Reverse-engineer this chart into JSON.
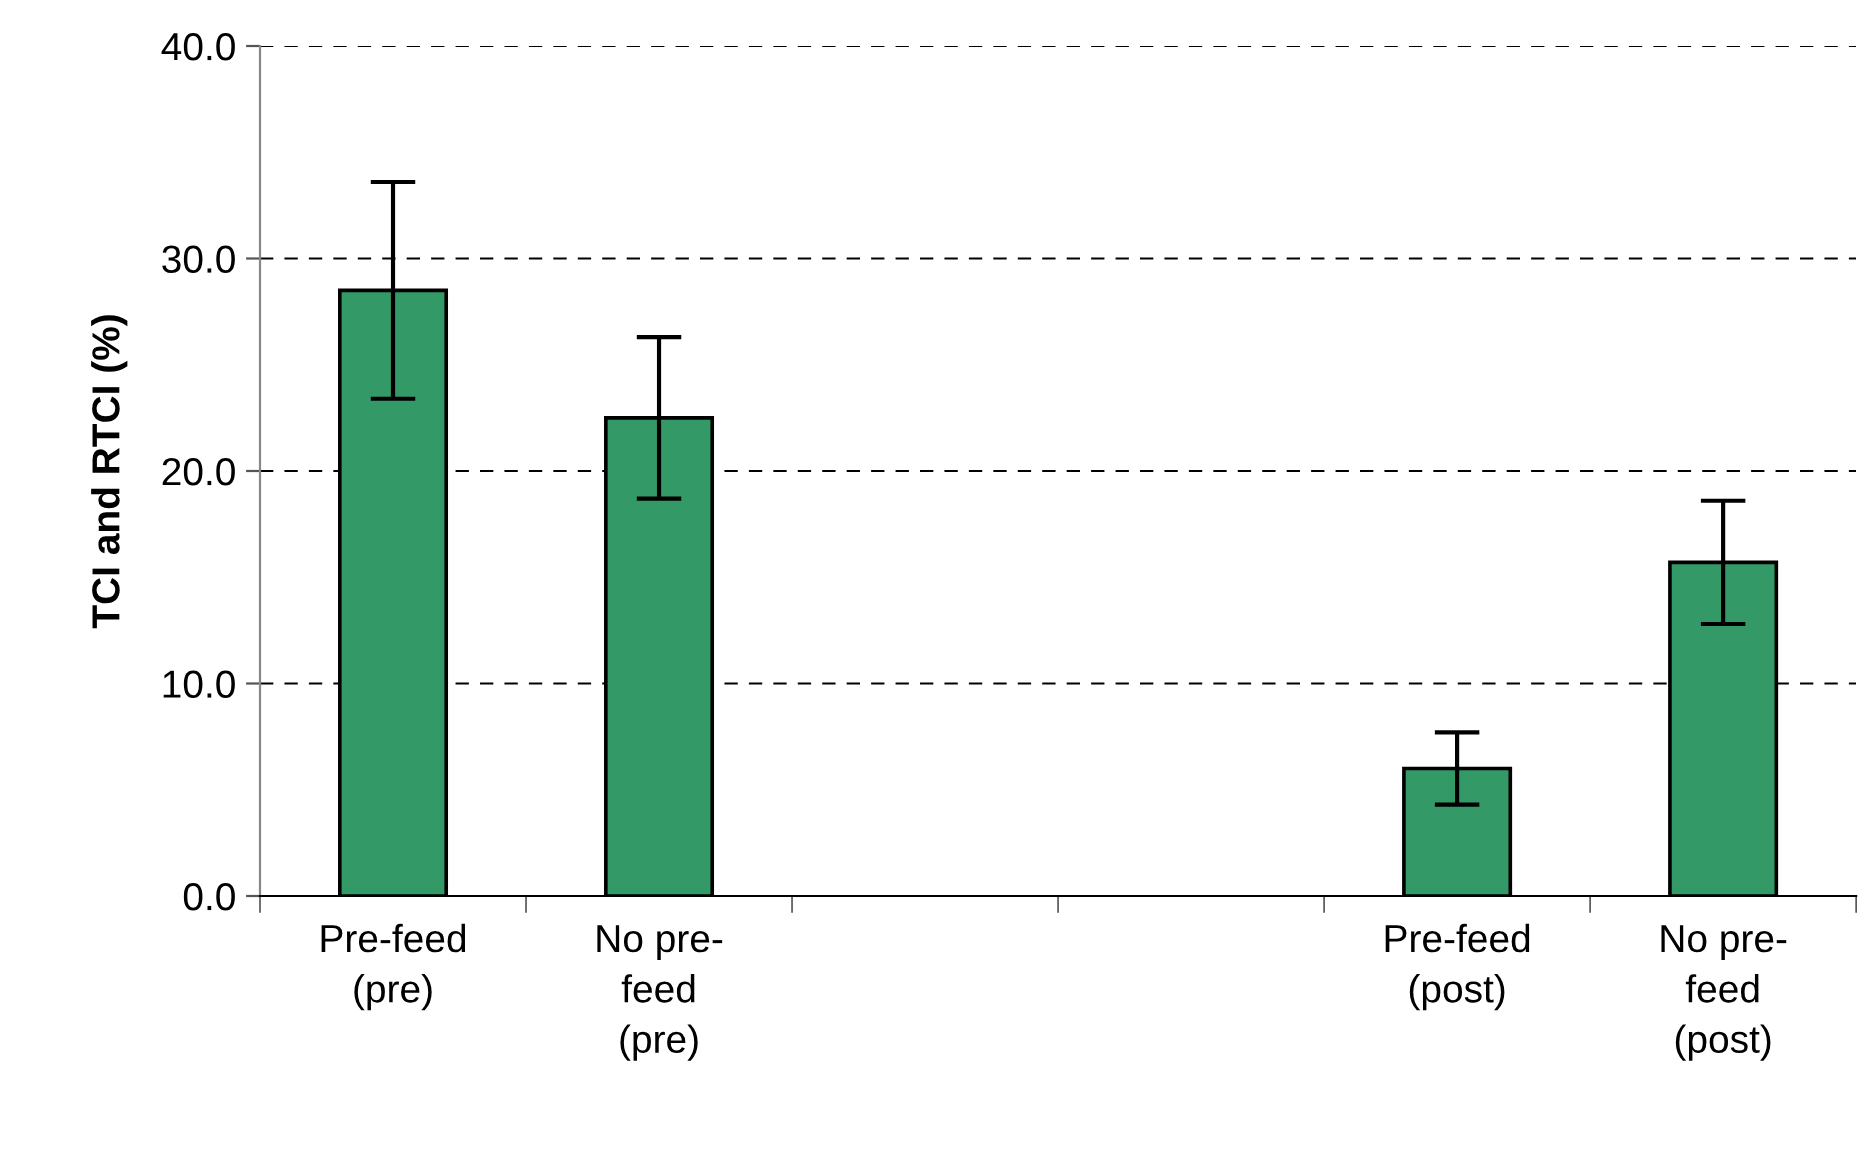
{
  "chart_data": {
    "type": "bar",
    "ylabel": "TCI and RTCI (%)",
    "categories": [
      "Pre-feed\n(pre)",
      "No pre-\nfeed\n(pre)",
      null,
      null,
      "Pre-feed\n(post)",
      "No pre-\nfeed\n(post)"
    ],
    "values": [
      28.5,
      22.5,
      null,
      null,
      6.0,
      15.7
    ],
    "errors": [
      5.1,
      3.8,
      null,
      null,
      1.7,
      2.9
    ],
    "color": "#339966",
    "ylim": [
      0,
      40
    ],
    "yticks": [
      {
        "value": 0,
        "label": "0.0"
      },
      {
        "value": 10,
        "label": "10.0"
      },
      {
        "value": 20,
        "label": "20.0"
      },
      {
        "value": 30,
        "label": "30.0"
      },
      {
        "value": 40,
        "label": "40.0"
      }
    ],
    "grid": "y"
  }
}
